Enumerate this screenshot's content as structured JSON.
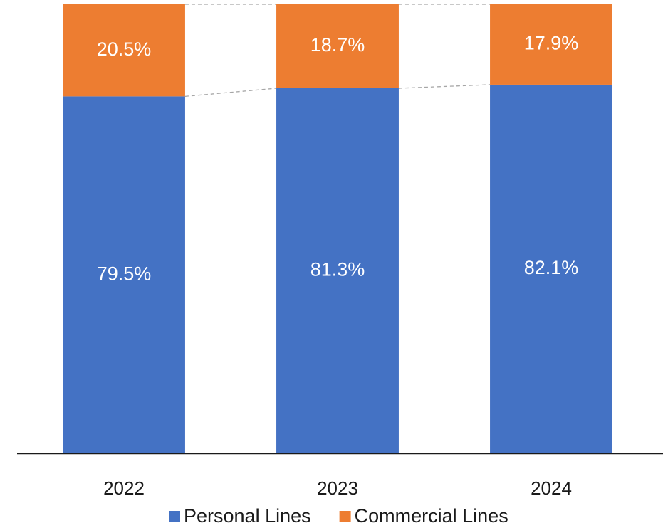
{
  "chart_data": {
    "type": "stacked_bar",
    "categories": [
      "2022",
      "2023",
      "2024"
    ],
    "series": [
      {
        "name": "Personal Lines",
        "color": "#4472c4",
        "values": [
          79.5,
          81.3,
          82.1
        ],
        "value_labels": [
          "79.5%",
          "81.3%",
          "82.1%"
        ]
      },
      {
        "name": "Commercial Lines",
        "color": "#ed7d31",
        "values": [
          20.5,
          18.7,
          17.9
        ],
        "value_labels": [
          "20.5%",
          "18.7%",
          "17.9%"
        ]
      }
    ],
    "ylim": [
      0,
      100
    ],
    "legend": "bottom"
  }
}
